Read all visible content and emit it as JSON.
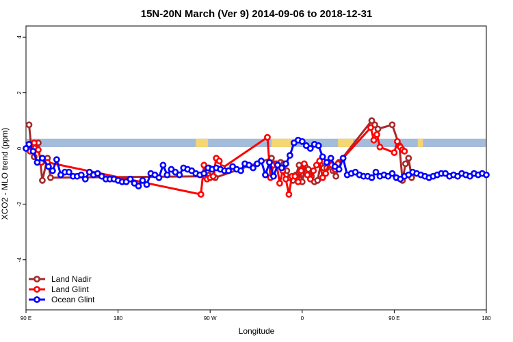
{
  "chart_data": {
    "type": "line",
    "title": "15N-20N March (Ver 9)   2014-09-06 to 2018-12-31",
    "xlabel": "Longitude",
    "ylabel": "XCO2 - MLO trend (ppm)",
    "xlim": [
      -180,
      270
    ],
    "ylim": [
      -5.8,
      4.4
    ],
    "x_ticks": [
      {
        "value": -180,
        "label": "90 E"
      },
      {
        "value": -90,
        "label": "180"
      },
      {
        "value": 0,
        "label": "90 W"
      },
      {
        "value": 90,
        "label": "0"
      },
      {
        "value": 180,
        "label": "90 E"
      },
      {
        "value": 270,
        "label": "180"
      }
    ],
    "y_ticks": [
      {
        "value": -4,
        "label": "-4"
      },
      {
        "value": -2,
        "label": "-2"
      },
      {
        "value": 0,
        "label": "0"
      },
      {
        "value": 2,
        "label": "2"
      },
      {
        "value": 4,
        "label": "4"
      }
    ],
    "land_band": {
      "y_range": [
        0.05,
        0.35
      ],
      "color": "#a4bcdc",
      "land_color": "#f5d673",
      "land_segments": [
        [
          -14,
          -2
        ],
        [
          60,
          82
        ],
        [
          125,
          140
        ],
        [
          203,
          208
        ]
      ]
    },
    "legend_placement": "bottom-left",
    "series": [
      {
        "name": "Land Nadir",
        "color": "#a52a2a",
        "x": [
          -177,
          -175,
          -172,
          -168,
          -164,
          -159,
          -156,
          -5,
          -3,
          -1,
          2,
          5,
          60,
          63,
          66,
          69,
          72,
          75,
          78,
          81,
          84,
          87,
          90,
          93,
          96,
          99,
          102,
          105,
          108,
          111,
          114,
          117,
          120,
          123,
          126,
          158,
          161,
          164,
          178,
          185,
          188,
          191,
          194,
          197
        ],
        "y": [
          0.85,
          0.1,
          -0.3,
          0.2,
          -1.15,
          -0.35,
          -1.05,
          -1.0,
          -0.8,
          -0.7,
          -0.85,
          -1.05,
          -0.35,
          -0.55,
          -0.6,
          -0.5,
          -0.55,
          -0.8,
          -1.05,
          -1.15,
          -0.95,
          -0.6,
          -1.2,
          -0.65,
          -0.75,
          -1.0,
          -1.2,
          -1.15,
          -0.6,
          -0.7,
          -0.7,
          -0.5,
          -0.8,
          -1.0,
          -0.5,
          1.0,
          0.85,
          0.7,
          0.85,
          0.1,
          -1.15,
          -0.55,
          -0.35,
          -1.05
        ],
        "label_to_y": {}
      },
      {
        "name": "Land Glint",
        "color": "#ff0000",
        "x": [
          -176,
          -172,
          -168,
          -165,
          -159,
          -9,
          -6,
          -3,
          0,
          3,
          6,
          9,
          12,
          56,
          59,
          62,
          65,
          68,
          71,
          74,
          77,
          80,
          83,
          86,
          89,
          92,
          95,
          98,
          101,
          104,
          107,
          110,
          113,
          116,
          119,
          122,
          125,
          157,
          160,
          163,
          166,
          180,
          183,
          186,
          188,
          190
        ],
        "y": [
          -0.1,
          0.2,
          -0.05,
          -0.5,
          -0.5,
          -1.65,
          -0.6,
          -1.1,
          -1.05,
          -1.0,
          -0.35,
          -0.45,
          -0.7,
          0.4,
          -1.05,
          -0.6,
          -0.55,
          -1.25,
          -0.8,
          -1.1,
          -1.65,
          -1.0,
          -1.0,
          -1.2,
          -0.8,
          -0.55,
          -0.95,
          -1.1,
          -0.8,
          -0.6,
          -0.45,
          -1.05,
          -0.9,
          -0.55,
          -0.6,
          -0.75,
          -0.55,
          0.75,
          0.3,
          0.5,
          0.05,
          -0.15,
          0.25,
          0.05,
          -0.05,
          -0.1
        ],
        "label_to_y": {}
      },
      {
        "name": "Ocean Glint",
        "color": "#0000ff",
        "x": [
          -180,
          -177,
          -173,
          -169,
          -164,
          -158,
          -154,
          -150,
          -146,
          -142,
          -138,
          -134,
          -130,
          -126,
          -122,
          -118,
          -114,
          -110,
          -106,
          -102,
          -98,
          -94,
          -90,
          -86,
          -82,
          -78,
          -74,
          -70,
          -66,
          -62,
          -58,
          -54,
          -50,
          -46,
          -42,
          -38,
          -34,
          -30,
          -26,
          -22,
          -18,
          -14,
          -10,
          -6,
          -2,
          2,
          6,
          10,
          14,
          18,
          22,
          26,
          30,
          34,
          38,
          42,
          46,
          50,
          54,
          58,
          62,
          66,
          70,
          74,
          78,
          82,
          86,
          90,
          94,
          98,
          102,
          106,
          110,
          114,
          118,
          122,
          126,
          130,
          134,
          138,
          142,
          146,
          150,
          154,
          158,
          162,
          166,
          170,
          174,
          178,
          182,
          186,
          190,
          194,
          198,
          202,
          206,
          210,
          214,
          218,
          222,
          226,
          230,
          234,
          238,
          242,
          246,
          250,
          254,
          258,
          262,
          266,
          270
        ],
        "y": [
          0.0,
          0.15,
          -0.1,
          -0.5,
          -0.35,
          -0.65,
          -0.8,
          -0.4,
          -0.95,
          -0.85,
          -0.85,
          -1.0,
          -1.0,
          -0.95,
          -1.1,
          -0.85,
          -0.95,
          -0.9,
          -1.0,
          -1.1,
          -1.1,
          -1.1,
          -1.15,
          -1.2,
          -1.2,
          -1.1,
          -1.25,
          -1.35,
          -1.15,
          -1.3,
          -0.9,
          -0.95,
          -1.05,
          -0.6,
          -0.95,
          -0.75,
          -0.85,
          -0.95,
          -0.7,
          -0.75,
          -0.8,
          -0.9,
          -0.95,
          -0.9,
          -0.7,
          -0.75,
          -0.7,
          -0.75,
          -0.8,
          -0.8,
          -0.65,
          -0.75,
          -0.8,
          -0.55,
          -0.6,
          -0.7,
          -0.55,
          -0.45,
          -0.95,
          -0.5,
          -1.0,
          -0.6,
          -0.7,
          -0.55,
          -0.25,
          0.2,
          0.3,
          0.25,
          0.1,
          0.0,
          0.15,
          0.1,
          -0.3,
          -0.5,
          -0.35,
          -0.65,
          -0.75,
          -0.35,
          -0.95,
          -0.9,
          -0.85,
          -0.95,
          -1.0,
          -1.0,
          -1.05,
          -0.85,
          -1.0,
          -0.95,
          -1.0,
          -0.9,
          -1.05,
          -1.1,
          -1.0,
          -0.95,
          -0.85,
          -0.9,
          -0.95,
          -1.0,
          -1.05,
          -1.0,
          -0.95,
          -0.9,
          -0.9,
          -1.0,
          -0.95,
          -1.0,
          -0.9,
          -0.95,
          -1.0,
          -0.9,
          -0.95,
          -0.9,
          -0.95
        ],
        "label_to_y": {}
      }
    ]
  }
}
